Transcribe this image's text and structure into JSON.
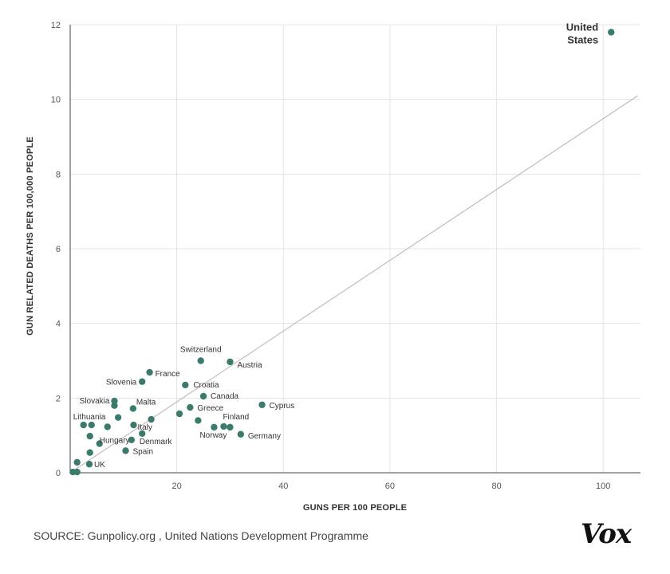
{
  "source": "SOURCE: Gunpolicy.org , United Nations Development Programme",
  "logo": "Vox",
  "colors": {
    "point": "#3d7a6e",
    "grid": "#e4e4e4",
    "trend": "#bdbdbd",
    "axis": "#444444"
  },
  "chart_data": {
    "type": "scatter",
    "xlabel": "GUNS PER 100 PEOPLE",
    "ylabel": "GUN RELATED DEATHS PER 100,000 PEOPLE",
    "xlim": [
      0,
      107
    ],
    "ylim": [
      0,
      12
    ],
    "xticks": [
      20,
      40,
      60,
      80,
      100
    ],
    "yticks": [
      0,
      2,
      4,
      6,
      8,
      10,
      12
    ],
    "grid": true,
    "trendline": [
      [
        0,
        0
      ],
      [
        106.5,
        10.1
      ]
    ],
    "points": [
      {
        "label": "United States",
        "x": 101.5,
        "y": 11.8
      },
      {
        "label": "Switzerland",
        "x": 24.5,
        "y": 3.0
      },
      {
        "label": "Austria",
        "x": 30.0,
        "y": 2.97
      },
      {
        "label": "France",
        "x": 14.9,
        "y": 2.69
      },
      {
        "label": "Slovenia",
        "x": 13.5,
        "y": 2.44
      },
      {
        "label": "Croatia",
        "x": 21.6,
        "y": 2.35
      },
      {
        "label": "Canada",
        "x": 25.0,
        "y": 2.05
      },
      {
        "label": "Cyprus",
        "x": 36.0,
        "y": 1.82
      },
      {
        "label": "Slovakia",
        "x": 8.3,
        "y": 1.92
      },
      {
        "label": "Malta",
        "x": 11.8,
        "y": 1.72
      },
      {
        "label": "Greece",
        "x": 22.5,
        "y": 1.75
      },
      {
        "label": "Finland",
        "x": 28.8,
        "y": 1.24
      },
      {
        "label": "Norway",
        "x": 27.0,
        "y": 1.22
      },
      {
        "label": "Germany",
        "x": 32.0,
        "y": 1.03
      },
      {
        "label": "Lithuania",
        "x": 2.5,
        "y": 1.28
      },
      {
        "label": "Italy",
        "x": 11.9,
        "y": 1.28
      },
      {
        "label": "Hungary",
        "x": 5.5,
        "y": 0.78
      },
      {
        "label": "Denmark",
        "x": 11.5,
        "y": 0.88
      },
      {
        "label": "Spain",
        "x": 10.4,
        "y": 0.59
      },
      {
        "label": "UK",
        "x": 3.6,
        "y": 0.23
      },
      {
        "label": "",
        "x": 8.3,
        "y": 1.8
      },
      {
        "label": "",
        "x": 9.0,
        "y": 1.48
      },
      {
        "label": "",
        "x": 4.0,
        "y": 1.28
      },
      {
        "label": "",
        "x": 7.0,
        "y": 1.23
      },
      {
        "label": "",
        "x": 3.7,
        "y": 0.98
      },
      {
        "label": "",
        "x": 13.5,
        "y": 1.05
      },
      {
        "label": "",
        "x": 15.2,
        "y": 1.43
      },
      {
        "label": "",
        "x": 20.5,
        "y": 1.58
      },
      {
        "label": "",
        "x": 24.0,
        "y": 1.4
      },
      {
        "label": "",
        "x": 30.0,
        "y": 1.22
      },
      {
        "label": "",
        "x": 3.7,
        "y": 0.54
      },
      {
        "label": "",
        "x": 1.3,
        "y": 0.28
      },
      {
        "label": "",
        "x": 0.5,
        "y": 0.02
      },
      {
        "label": "",
        "x": 1.3,
        "y": 0.02
      }
    ]
  }
}
